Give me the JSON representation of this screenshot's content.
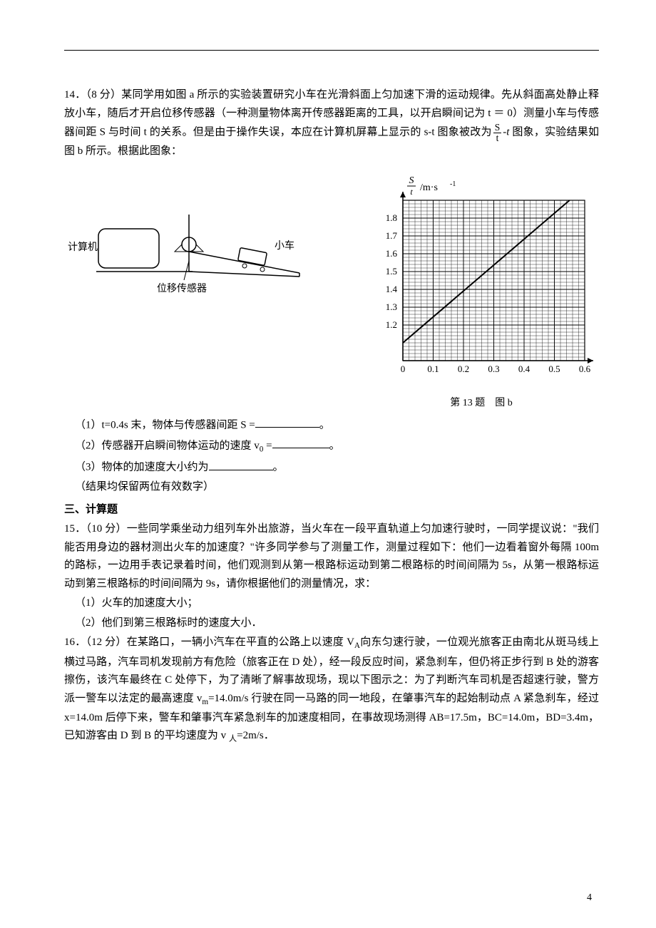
{
  "q14": {
    "number_points": "14．（8 分）",
    "para1": "某同学用如图 a 所示的实验装置研究小车在光滑斜面上匀加速下滑的运动规律。先从斜面高处静止释放小车，随后才开启位移传感器（一种测量物体离开传感器距离的工具，以开启瞬间记为 t ＝ 0）测量小车与传感器间距 S 与时间 t 的关系。但是由于操作失误，本应在计算机屏幕上显示的 s-t 图象被改为",
    "frac_num": "S",
    "frac_den": "t",
    "para1_tail": "图象，实验结果如图 b 所示。根据此图象：",
    "sub1_label": "（1）t=0.4s 末，物体与传感器间距 S =",
    "sub1_end": "。",
    "sub2_label": "（2）传感器开启瞬间物体运动的速度 v",
    "sub2_sub": "0",
    "sub2_eq": " =",
    "sub2_end": "。",
    "sub3_label": "（3）物体的加速度大小约为",
    "sub3_end": "。",
    "note": "（结果均保留两位有效数字）"
  },
  "section3": "三、计算题",
  "q15": {
    "number_points": "15．（10 分）",
    "body": "一些同学乘坐动力组列车外出旅游，当火车在一段平直轨道上匀加速行驶时，一同学提议说：\"我们能否用身边的器材测出火车的加速度？\"许多同学参与了测量工作，测量过程如下：他们一边看着窗外每隔 100m 的路标，一边用手表记录着时间，他们观测到从第一根路标运动到第二根路标的时间间隔为 5s，从第一根路标运动到第三根路标的时间间隔为 9s，请你根据他们的测量情况，求：",
    "sub1": "（1）火车的加速度大小；",
    "sub2": "（2）他们到第三根路标时的速度大小．"
  },
  "q16": {
    "number_points": "16．（12 分）",
    "body": "在某路口，一辆小汽车在平直的公路上以速度 V",
    "body_sub": "A",
    "body2": "向东匀速行驶，一位观光旅客正由南北从斑马线上横过马路，汽车司机发现前方有危险（旅客正在 D 处），经一段反应时间，紧急刹车，但仍将正步行到 B 处的游客擦伤，该汽车最终在 C 处停下，为了清晰了解事故现场，现以下图示之：为了判断汽车司机是否超速行驶，警方派一警车以法定的最高速度 v",
    "body2_sub": "m",
    "body3": "=14.0m/s 行驶在同一马路的同一地段，在肇事汽车的起始制动点 A 紧急刹车，经过 x=14.0m 后停下来，警车和肇事汽车紧急刹车的加速度相同，在事故现场测得 AB=17.5m，BC=14.0m，BD=3.4m，已知游客由 D 到 B 的平均速度为 v ",
    "body3_sub": "人",
    "body4": "=2m/s．"
  },
  "apparatus": {
    "computer_label": "计算机",
    "car_label": "小车",
    "sensor_label": "位移传感器"
  },
  "chart": {
    "ylabel_frac_num": "S",
    "ylabel_frac_den": "t",
    "ylabel_unit": "/m·s",
    "ylabel_unit_sup": "-1",
    "xlim": [
      0,
      0.6
    ],
    "ylim": [
      1.0,
      1.9
    ],
    "xtick_values": [
      0,
      0.1,
      0.2,
      0.3,
      0.4,
      0.5,
      0.6
    ],
    "xtick_labels": [
      "0",
      "0.1",
      "0.2",
      "0.3",
      "0.4",
      "0.5",
      "0.6"
    ],
    "ytick_values": [
      1.2,
      1.3,
      1.4,
      1.5,
      1.6,
      1.7,
      1.8
    ],
    "ytick_labels": [
      "1.2",
      "1.3",
      "1.4",
      "1.5",
      "1.6",
      "1.7",
      "1.8"
    ],
    "line_points": [
      [
        0.0,
        1.1
      ],
      [
        0.55,
        1.9
      ]
    ],
    "grid_major_color": "#000000",
    "grid_minor_color": "#000000",
    "minor_per_major": 5,
    "line_color": "#000000",
    "line_width": 2,
    "background": "#ffffff",
    "caption": "第 13 题　图 b"
  },
  "page_number": "4"
}
